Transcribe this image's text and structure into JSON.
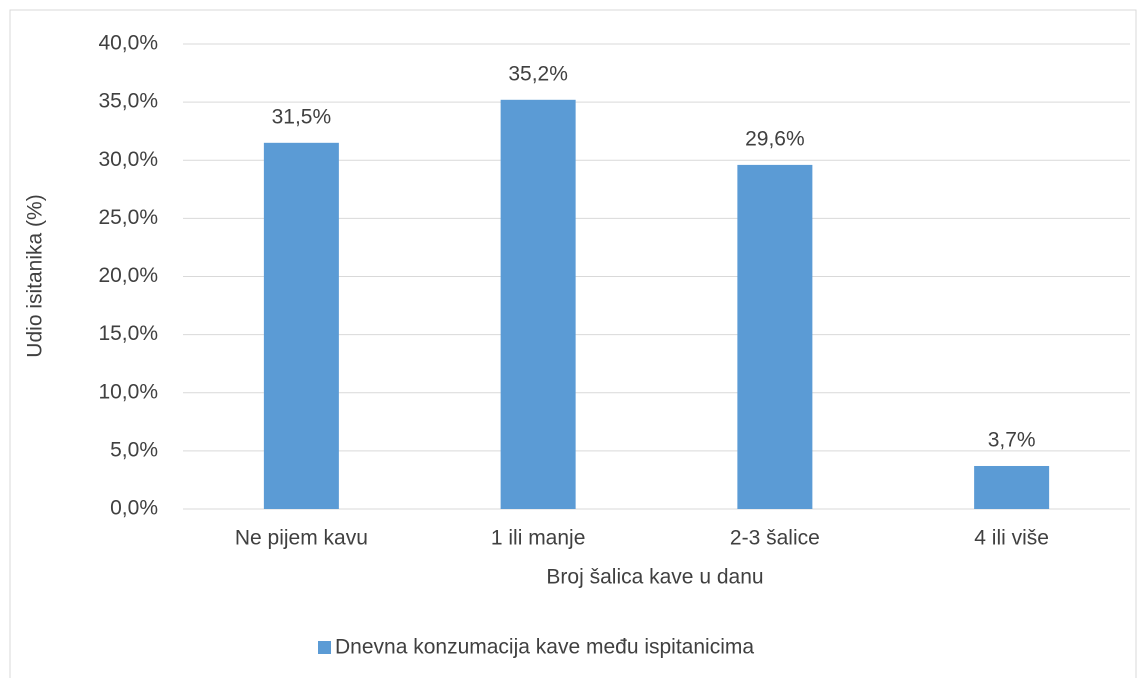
{
  "chart_data": {
    "type": "bar",
    "categories": [
      "Ne pijem kavu",
      "1 ili manje",
      "2-3 šalice",
      "4 ili više"
    ],
    "series": [
      {
        "name": "Dnevna konzumacija kave među ispitanicima",
        "color": "#5b9bd5",
        "values": [
          31.5,
          35.2,
          29.6,
          3.7
        ],
        "value_labels": [
          "31,5%",
          "35,2%",
          "29,6%",
          "3,7%"
        ]
      }
    ],
    "x_label": "Broj šalica kave u danu",
    "y_label": "Udio isitanika (%)",
    "ylim": [
      0,
      40
    ],
    "yticks": [
      {
        "value": 0,
        "label": "0,0%"
      },
      {
        "value": 5,
        "label": "5,0%"
      },
      {
        "value": 10,
        "label": "10,0%"
      },
      {
        "value": 15,
        "label": "15,0%"
      },
      {
        "value": 20,
        "label": "20,0%"
      },
      {
        "value": 25,
        "label": "25,0%"
      },
      {
        "value": 30,
        "label": "30,0%"
      },
      {
        "value": 35,
        "label": "35,0%"
      },
      {
        "value": 40,
        "label": "40,0%"
      }
    ],
    "grid": true,
    "legend": "bottom"
  }
}
